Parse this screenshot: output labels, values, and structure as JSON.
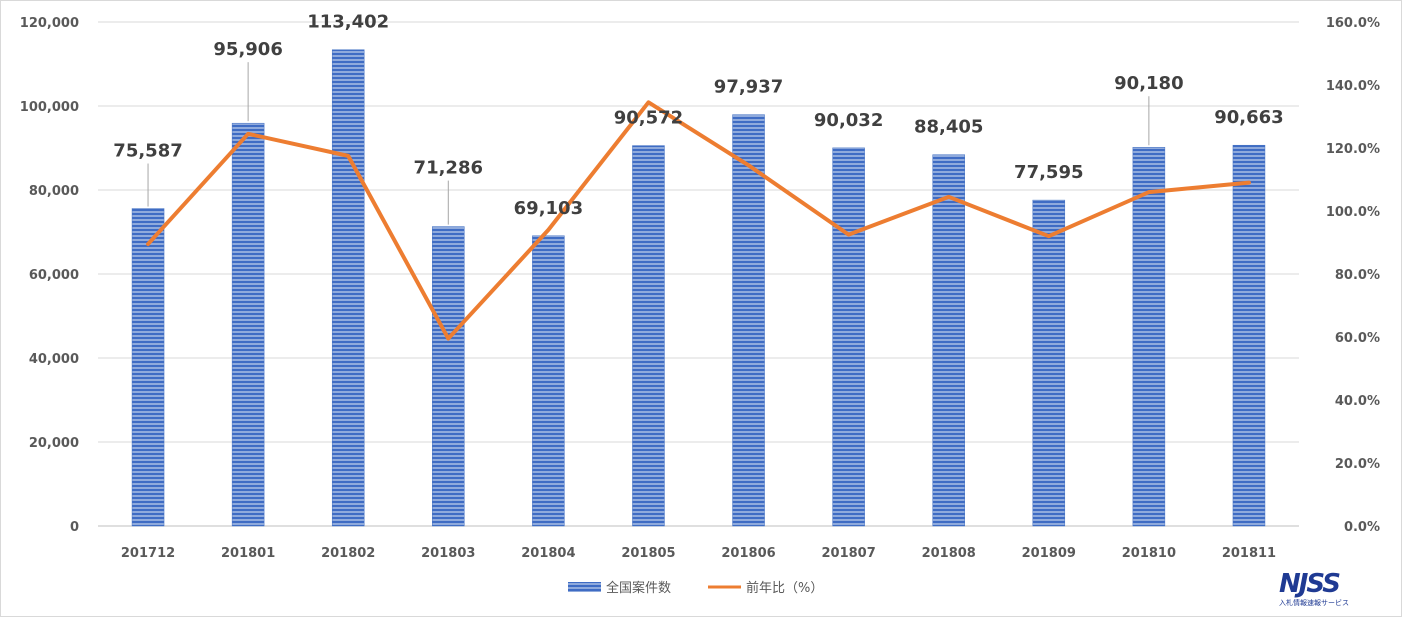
{
  "chart_data": {
    "type": "bar",
    "categories": [
      "201712",
      "201801",
      "201802",
      "201803",
      "201804",
      "201805",
      "201806",
      "201807",
      "201808",
      "201809",
      "201810",
      "201811"
    ],
    "series": [
      {
        "name": "全国案件数",
        "type": "bar",
        "axis": "left",
        "color": "#4472c4",
        "values": [
          75587,
          95906,
          113402,
          71286,
          69103,
          90572,
          97937,
          90032,
          88405,
          77595,
          90180,
          90663
        ],
        "labels": [
          "75,587",
          "95,906",
          "113,402",
          "71,286",
          "69,103",
          "90,572",
          "97,937",
          "90,032",
          "88,405",
          "77,595",
          "90,180",
          "90,663"
        ]
      },
      {
        "name": "前年比（%）",
        "type": "line",
        "axis": "right",
        "color": "#ed7d31",
        "values": [
          89.5,
          124.5,
          117.5,
          59.5,
          94.0,
          134.5,
          114.5,
          92.5,
          104.5,
          92.0,
          106.0,
          109.0
        ]
      }
    ],
    "ylim_left": [
      0,
      120000
    ],
    "ylim_right": [
      0,
      160
    ],
    "y_ticks_left": [
      "0",
      "20,000",
      "40,000",
      "60,000",
      "80,000",
      "100,000",
      "120,000"
    ],
    "y_ticks_right": [
      "0.0%",
      "20.0%",
      "40.0%",
      "60.0%",
      "80.0%",
      "100.0%",
      "120.0%",
      "140.0%",
      "160.0%"
    ],
    "grid": true,
    "legend_position": "bottom"
  },
  "logo": {
    "main": "NJSS",
    "sub": "入札情報速報サービス"
  }
}
